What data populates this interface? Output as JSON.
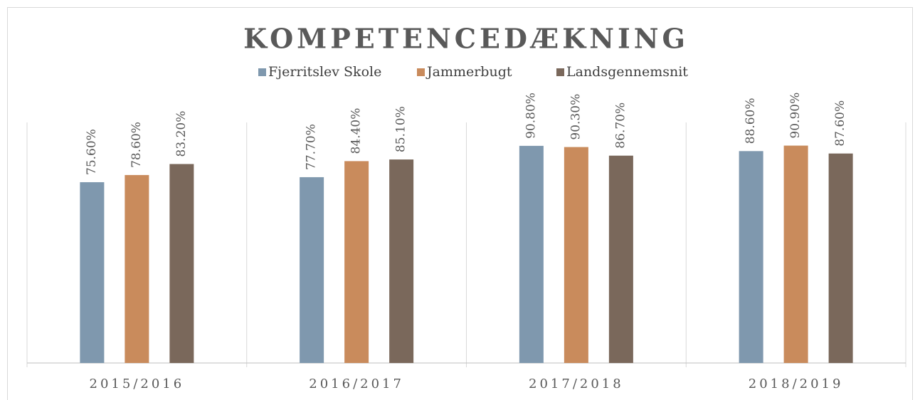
{
  "chart_data": {
    "type": "bar",
    "title": "KOMPETENCEDÆKNING",
    "categories": [
      "2015/2016",
      "2016/2017",
      "2017/2018",
      "2018/2019"
    ],
    "series": [
      {
        "name": "Fjerritslev Skole",
        "color": "#7f98ae",
        "values": [
          75.6,
          77.7,
          90.8,
          88.6
        ],
        "value_labels": [
          "75.60%",
          "77.70%",
          "90.80%",
          "88.60%"
        ]
      },
      {
        "name": "Jammerbugt",
        "color": "#c98b5c",
        "values": [
          78.6,
          84.4,
          90.3,
          90.9
        ],
        "value_labels": [
          "78.60%",
          "84.40%",
          "90.30%",
          "90.90%"
        ]
      },
      {
        "name": "Landsgennemsnit",
        "color": "#7a685b",
        "values": [
          83.2,
          85.1,
          86.7,
          87.6
        ],
        "value_labels": [
          "83.20%",
          "85.10%",
          "86.70%",
          "87.60%"
        ]
      }
    ],
    "ylim": [
      0,
      100
    ],
    "legend": "top"
  }
}
